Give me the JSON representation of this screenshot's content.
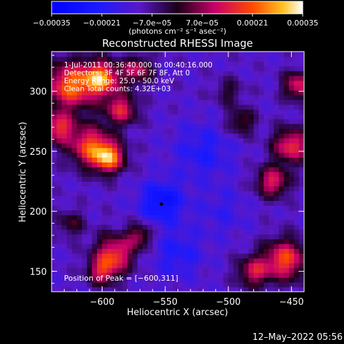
{
  "chart_data": {
    "type": "heatmap",
    "title": "Reconstructed RHESSI Image",
    "xlabel": "Heliocentric X (arcsec)",
    "ylabel": "Heliocentric Y (arcsec)",
    "xlim": [
      -640,
      -440
    ],
    "ylim": [
      133,
      333
    ],
    "x_ticks": [
      -600,
      -550,
      -500,
      -450
    ],
    "x_tick_labels": [
      "−600",
      "−550",
      "−500",
      "−450"
    ],
    "y_ticks": [
      150,
      200,
      250,
      300
    ],
    "y_tick_labels": [
      "150",
      "200",
      "250",
      "300"
    ],
    "colorbar": {
      "min": -0.00035,
      "max": 0.00035,
      "tick_values": [
        -0.00035,
        -0.00021,
        -7e-05,
        7e-05,
        0.00021,
        0.00035
      ],
      "tick_labels": [
        "−0.00035",
        "−0.00021",
        "−7.0e−05",
        "7.0e−05",
        "0.00021",
        "0.00035"
      ],
      "unit_label": "(photons cm⁻² s⁻¹ asec⁻²)"
    },
    "annotations": [
      "1-Jul-2011 00:36:40.000 to 00:40:16.000",
      "Detectors: 3F 4F 5F 6F 7F 8F, Att 0",
      "Energy Range: 25.0 - 50.0 keV",
      "Clean     Total counts: 4.32E+03"
    ],
    "peak_label": "Position of Peak = [−600,311]",
    "peak": {
      "x": -600,
      "y": 311
    },
    "marker": {
      "x": -553,
      "y": 206
    },
    "grid_resolution": 50,
    "hotspots": [
      {
        "x": -625,
        "y": 305,
        "amp": 0.00033,
        "w": 14
      },
      {
        "x": -600,
        "y": 311,
        "amp": 0.00035,
        "w": 10
      },
      {
        "x": -585,
        "y": 285,
        "amp": 0.00025,
        "w": 9
      },
      {
        "x": -610,
        "y": 255,
        "amp": 0.00028,
        "w": 12
      },
      {
        "x": -595,
        "y": 245,
        "amp": 0.00034,
        "w": 9
      },
      {
        "x": -635,
        "y": 270,
        "amp": 0.00026,
        "w": 9
      },
      {
        "x": -572,
        "y": 318,
        "amp": 0.00022,
        "w": 8
      },
      {
        "x": -590,
        "y": 165,
        "amp": 0.00028,
        "w": 11
      },
      {
        "x": -600,
        "y": 150,
        "amp": 0.00022,
        "w": 8
      },
      {
        "x": -570,
        "y": 180,
        "amp": 0.00018,
        "w": 7
      },
      {
        "x": -625,
        "y": 190,
        "amp": 0.00012,
        "w": 8
      },
      {
        "x": -450,
        "y": 255,
        "amp": 0.00028,
        "w": 10
      },
      {
        "x": -465,
        "y": 225,
        "amp": 0.00025,
        "w": 9
      },
      {
        "x": -445,
        "y": 305,
        "amp": 0.00025,
        "w": 8
      },
      {
        "x": -455,
        "y": 160,
        "amp": 0.0003,
        "w": 12
      },
      {
        "x": -480,
        "y": 150,
        "amp": 0.00022,
        "w": 9
      },
      {
        "x": -490,
        "y": 275,
        "amp": 0.00015,
        "w": 8
      },
      {
        "x": -500,
        "y": 300,
        "amp": 0.0001,
        "w": 8
      }
    ],
    "coldspots": [
      {
        "x": -553,
        "y": 208,
        "amp": -0.00018,
        "w": 12
      },
      {
        "x": -520,
        "y": 250,
        "amp": -0.0001,
        "w": 16
      },
      {
        "x": -540,
        "y": 165,
        "amp": -0.0001,
        "w": 14
      },
      {
        "x": -505,
        "y": 200,
        "amp": -6e-05,
        "w": 14
      }
    ]
  },
  "footer": {
    "date": "12–May–2022 05:56"
  }
}
